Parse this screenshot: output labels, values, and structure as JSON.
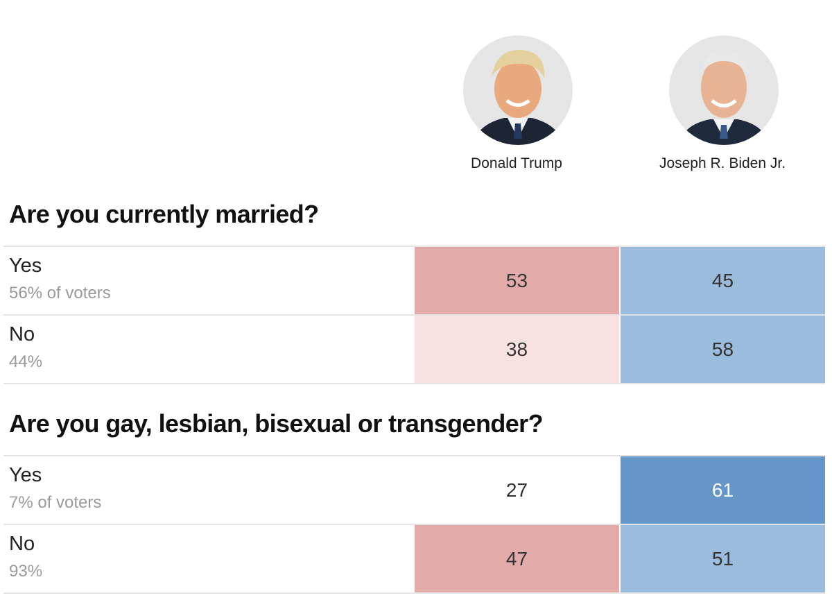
{
  "candidates": [
    "Donald Trump",
    "Joseph R. Biden Jr."
  ],
  "sections": [
    {
      "question": "Are you currently married?",
      "rows": [
        {
          "label": "Yes",
          "share": "56% of voters",
          "values": [
            53,
            45
          ],
          "colors": [
            "#e2aaa8",
            "#9bbcdd"
          ],
          "text_colors": [
            "#333333",
            "#333333"
          ]
        },
        {
          "label": "No",
          "share": "44%",
          "values": [
            38,
            58
          ],
          "colors": [
            "#f7e1e1",
            "#9bbcdd"
          ],
          "text_colors": [
            "#333333",
            "#333333"
          ]
        }
      ]
    },
    {
      "question": "Are you gay, lesbian, bisexual or transgender?",
      "rows": [
        {
          "label": "Yes",
          "share": "7% of voters",
          "values": [
            27,
            61
          ],
          "colors": [
            "#ffffff",
            "#6496c8"
          ],
          "text_colors": [
            "#333333",
            "#ffffff"
          ]
        },
        {
          "label": "No",
          "share": "93%",
          "values": [
            47,
            51
          ],
          "colors": [
            "#e2aaa8",
            "#9bbcdd"
          ],
          "text_colors": [
            "#333333",
            "#333333"
          ]
        }
      ]
    }
  ]
}
